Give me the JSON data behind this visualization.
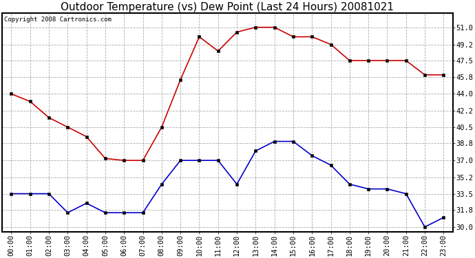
{
  "title": "Outdoor Temperature (vs) Dew Point (Last 24 Hours) 20081021",
  "copyright_text": "Copyright 2008 Cartronics.com",
  "x_labels": [
    "00:00",
    "01:00",
    "02:00",
    "03:00",
    "04:00",
    "05:00",
    "06:00",
    "07:00",
    "08:00",
    "09:00",
    "10:00",
    "11:00",
    "12:00",
    "13:00",
    "14:00",
    "15:00",
    "16:00",
    "17:00",
    "18:00",
    "19:00",
    "20:00",
    "21:00",
    "22:00",
    "23:00"
  ],
  "temp_values": [
    44.0,
    43.2,
    41.5,
    40.5,
    39.5,
    37.2,
    37.0,
    37.0,
    40.5,
    45.5,
    50.0,
    48.5,
    50.5,
    51.0,
    51.0,
    50.0,
    50.0,
    49.2,
    47.5,
    47.5,
    47.5,
    47.5,
    46.0,
    46.0
  ],
  "dew_values": [
    33.5,
    33.5,
    33.5,
    31.5,
    32.5,
    31.5,
    31.5,
    31.5,
    34.5,
    37.0,
    37.0,
    37.0,
    34.5,
    38.0,
    39.0,
    39.0,
    37.5,
    36.5,
    34.5,
    34.0,
    34.0,
    33.5,
    30.0,
    31.0
  ],
  "temp_color": "#cc0000",
  "dew_color": "#0000cc",
  "background_color": "#ffffff",
  "plot_bg_color": "#ffffff",
  "grid_color": "#aaaaaa",
  "ylim": [
    29.5,
    52.5
  ],
  "yticks": [
    30.0,
    31.8,
    33.5,
    35.2,
    37.0,
    38.8,
    40.5,
    42.2,
    44.0,
    45.8,
    47.5,
    49.2,
    51.0
  ],
  "title_fontsize": 11,
  "tick_fontsize": 7.5,
  "copyright_fontsize": 6.5,
  "marker": "s",
  "marker_size": 3.5,
  "line_width": 1.2
}
